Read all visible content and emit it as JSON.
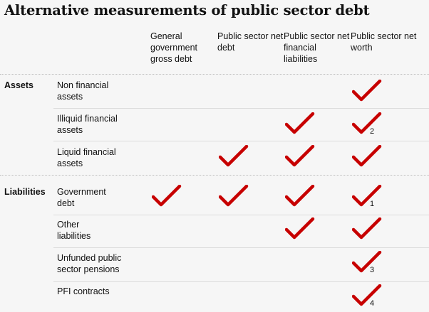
{
  "title": "Alternative measurements of public sector debt",
  "columns": [
    "General government gross debt",
    "Public sector net debt",
    "Public sector net financial liabilities",
    "Public sector net worth"
  ],
  "groups": {
    "assets": "Assets",
    "liabilities": "Liabilities"
  },
  "rows": [
    {
      "label": "Non financial assets",
      "checks": [
        false,
        false,
        false,
        true
      ],
      "note": ""
    },
    {
      "label": "Illiquid financial assets",
      "checks": [
        false,
        false,
        true,
        true
      ],
      "note": "2"
    },
    {
      "label": "Liquid financial assets",
      "checks": [
        false,
        true,
        true,
        true
      ],
      "note": ""
    },
    {
      "label": "Government debt",
      "checks": [
        true,
        true,
        true,
        true
      ],
      "note": "1"
    },
    {
      "label": "Other liabilities",
      "checks": [
        false,
        false,
        true,
        true
      ],
      "note": ""
    },
    {
      "label": "Unfunded public sector pensions",
      "checks": [
        false,
        false,
        false,
        true
      ],
      "note": "3"
    },
    {
      "label": "PFI contracts",
      "checks": [
        false,
        false,
        false,
        true
      ],
      "note": "4"
    }
  ],
  "colors": {
    "check": "#c70000",
    "text": "#121212",
    "background": "#f6f6f6"
  },
  "icons": {
    "check": "checkmark-icon"
  }
}
